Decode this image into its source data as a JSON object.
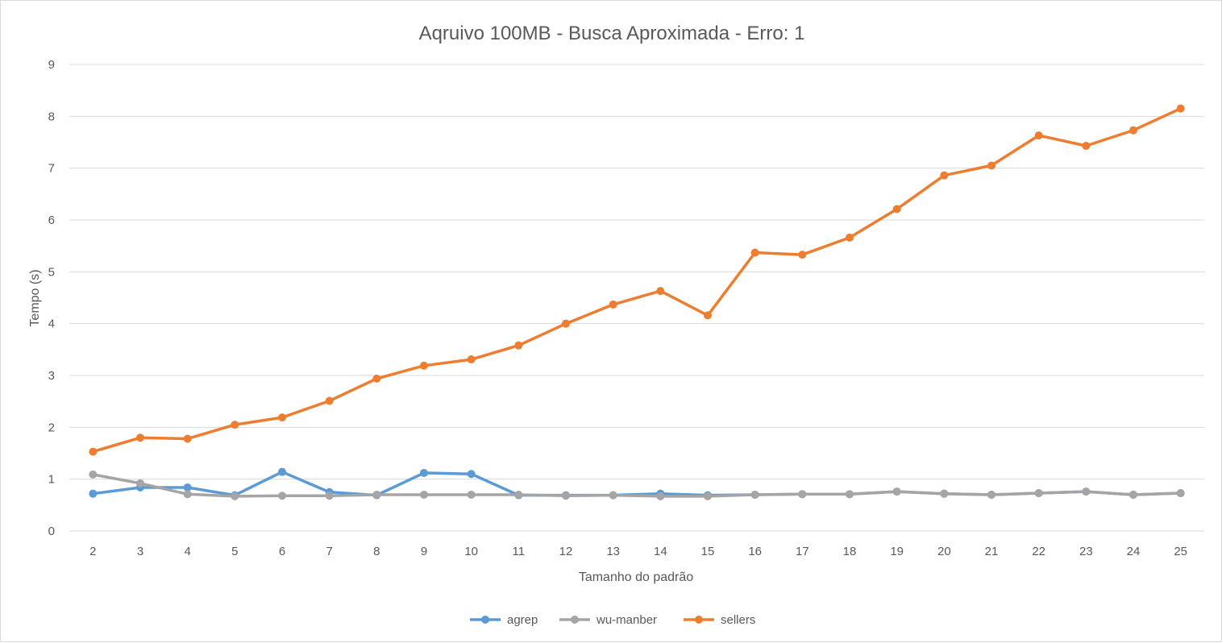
{
  "chart_data": {
    "type": "line",
    "title": "Aqruivo 100MB - Busca Aproximada - Erro: 1",
    "xlabel": "Tamanho do padrão",
    "ylabel": "Tempo (s)",
    "ylim": [
      0,
      9
    ],
    "yticks": [
      "0",
      "1",
      "2",
      "3",
      "4",
      "5",
      "6",
      "7",
      "8",
      "9"
    ],
    "grid": "horizontal",
    "legend_position": "bottom",
    "categories": [
      "2",
      "3",
      "4",
      "5",
      "6",
      "7",
      "8",
      "9",
      "10",
      "11",
      "12",
      "13",
      "14",
      "15",
      "16",
      "17",
      "18",
      "19",
      "20",
      "21",
      "22",
      "23",
      "24",
      "25"
    ],
    "series": [
      {
        "name": "agrep",
        "color": "#5b9bd5",
        "values": [
          0.72,
          0.84,
          0.84,
          0.69,
          1.14,
          0.75,
          0.69,
          1.12,
          1.1,
          0.69,
          0.69,
          0.69,
          0.72,
          0.69,
          0.7,
          0.71,
          0.71,
          0.76,
          0.72,
          0.7,
          0.73,
          0.76,
          0.7,
          0.73
        ]
      },
      {
        "name": "wu-manber",
        "color": "#a5a5a5",
        "values": [
          1.09,
          0.92,
          0.71,
          0.67,
          0.68,
          0.68,
          0.7,
          0.7,
          0.7,
          0.7,
          0.68,
          0.69,
          0.67,
          0.67,
          0.7,
          0.71,
          0.71,
          0.76,
          0.72,
          0.7,
          0.73,
          0.76,
          0.7,
          0.73
        ]
      },
      {
        "name": "sellers",
        "color": "#ed7d31",
        "values": [
          1.53,
          1.8,
          1.78,
          2.05,
          2.19,
          2.51,
          2.94,
          3.19,
          3.31,
          3.58,
          4.0,
          4.37,
          4.63,
          4.16,
          5.37,
          5.33,
          5.66,
          6.21,
          6.86,
          7.05,
          7.63,
          7.43,
          7.73,
          8.15
        ]
      }
    ]
  }
}
